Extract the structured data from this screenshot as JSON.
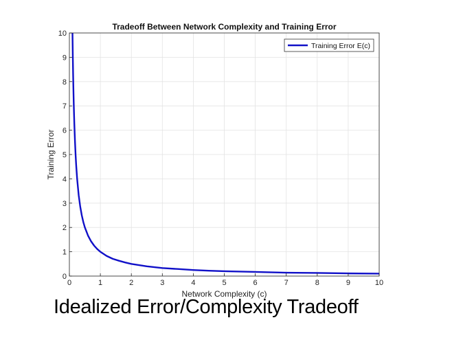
{
  "caption": "Idealized Error/Complexity Tradeoff",
  "chart_data": {
    "type": "line",
    "title": "Tradeoff Between Network Complexity and Training Error",
    "xlabel": "Network Complexity (c)",
    "ylabel": "Training Error",
    "xlim": [
      0,
      10
    ],
    "ylim": [
      0,
      10
    ],
    "xticks": [
      0,
      1,
      2,
      3,
      4,
      5,
      6,
      7,
      8,
      9,
      10
    ],
    "yticks": [
      0,
      1,
      2,
      3,
      4,
      5,
      6,
      7,
      8,
      9,
      10
    ],
    "grid": true,
    "legend_position": "top-right",
    "series": [
      {
        "name": "Training Error E(c)",
        "color": "#1010c8",
        "function": "1/c",
        "x": [
          0.1,
          0.11,
          0.12,
          0.13,
          0.14,
          0.15,
          0.16,
          0.18,
          0.2,
          0.22,
          0.25,
          0.3,
          0.35,
          0.4,
          0.45,
          0.5,
          0.6,
          0.7,
          0.8,
          0.9,
          1.0,
          1.2,
          1.4,
          1.6,
          1.8,
          2.0,
          2.5,
          3.0,
          3.5,
          4.0,
          4.5,
          5.0,
          6.0,
          7.0,
          8.0,
          9.0,
          10.0
        ],
        "y": [
          10.0,
          9.09,
          8.33,
          7.69,
          7.14,
          6.67,
          6.25,
          5.56,
          5.0,
          4.55,
          4.0,
          3.33,
          2.86,
          2.5,
          2.22,
          2.0,
          1.67,
          1.43,
          1.25,
          1.11,
          1.0,
          0.83,
          0.71,
          0.63,
          0.56,
          0.5,
          0.4,
          0.33,
          0.29,
          0.25,
          0.22,
          0.2,
          0.17,
          0.14,
          0.13,
          0.11,
          0.1
        ]
      }
    ]
  }
}
